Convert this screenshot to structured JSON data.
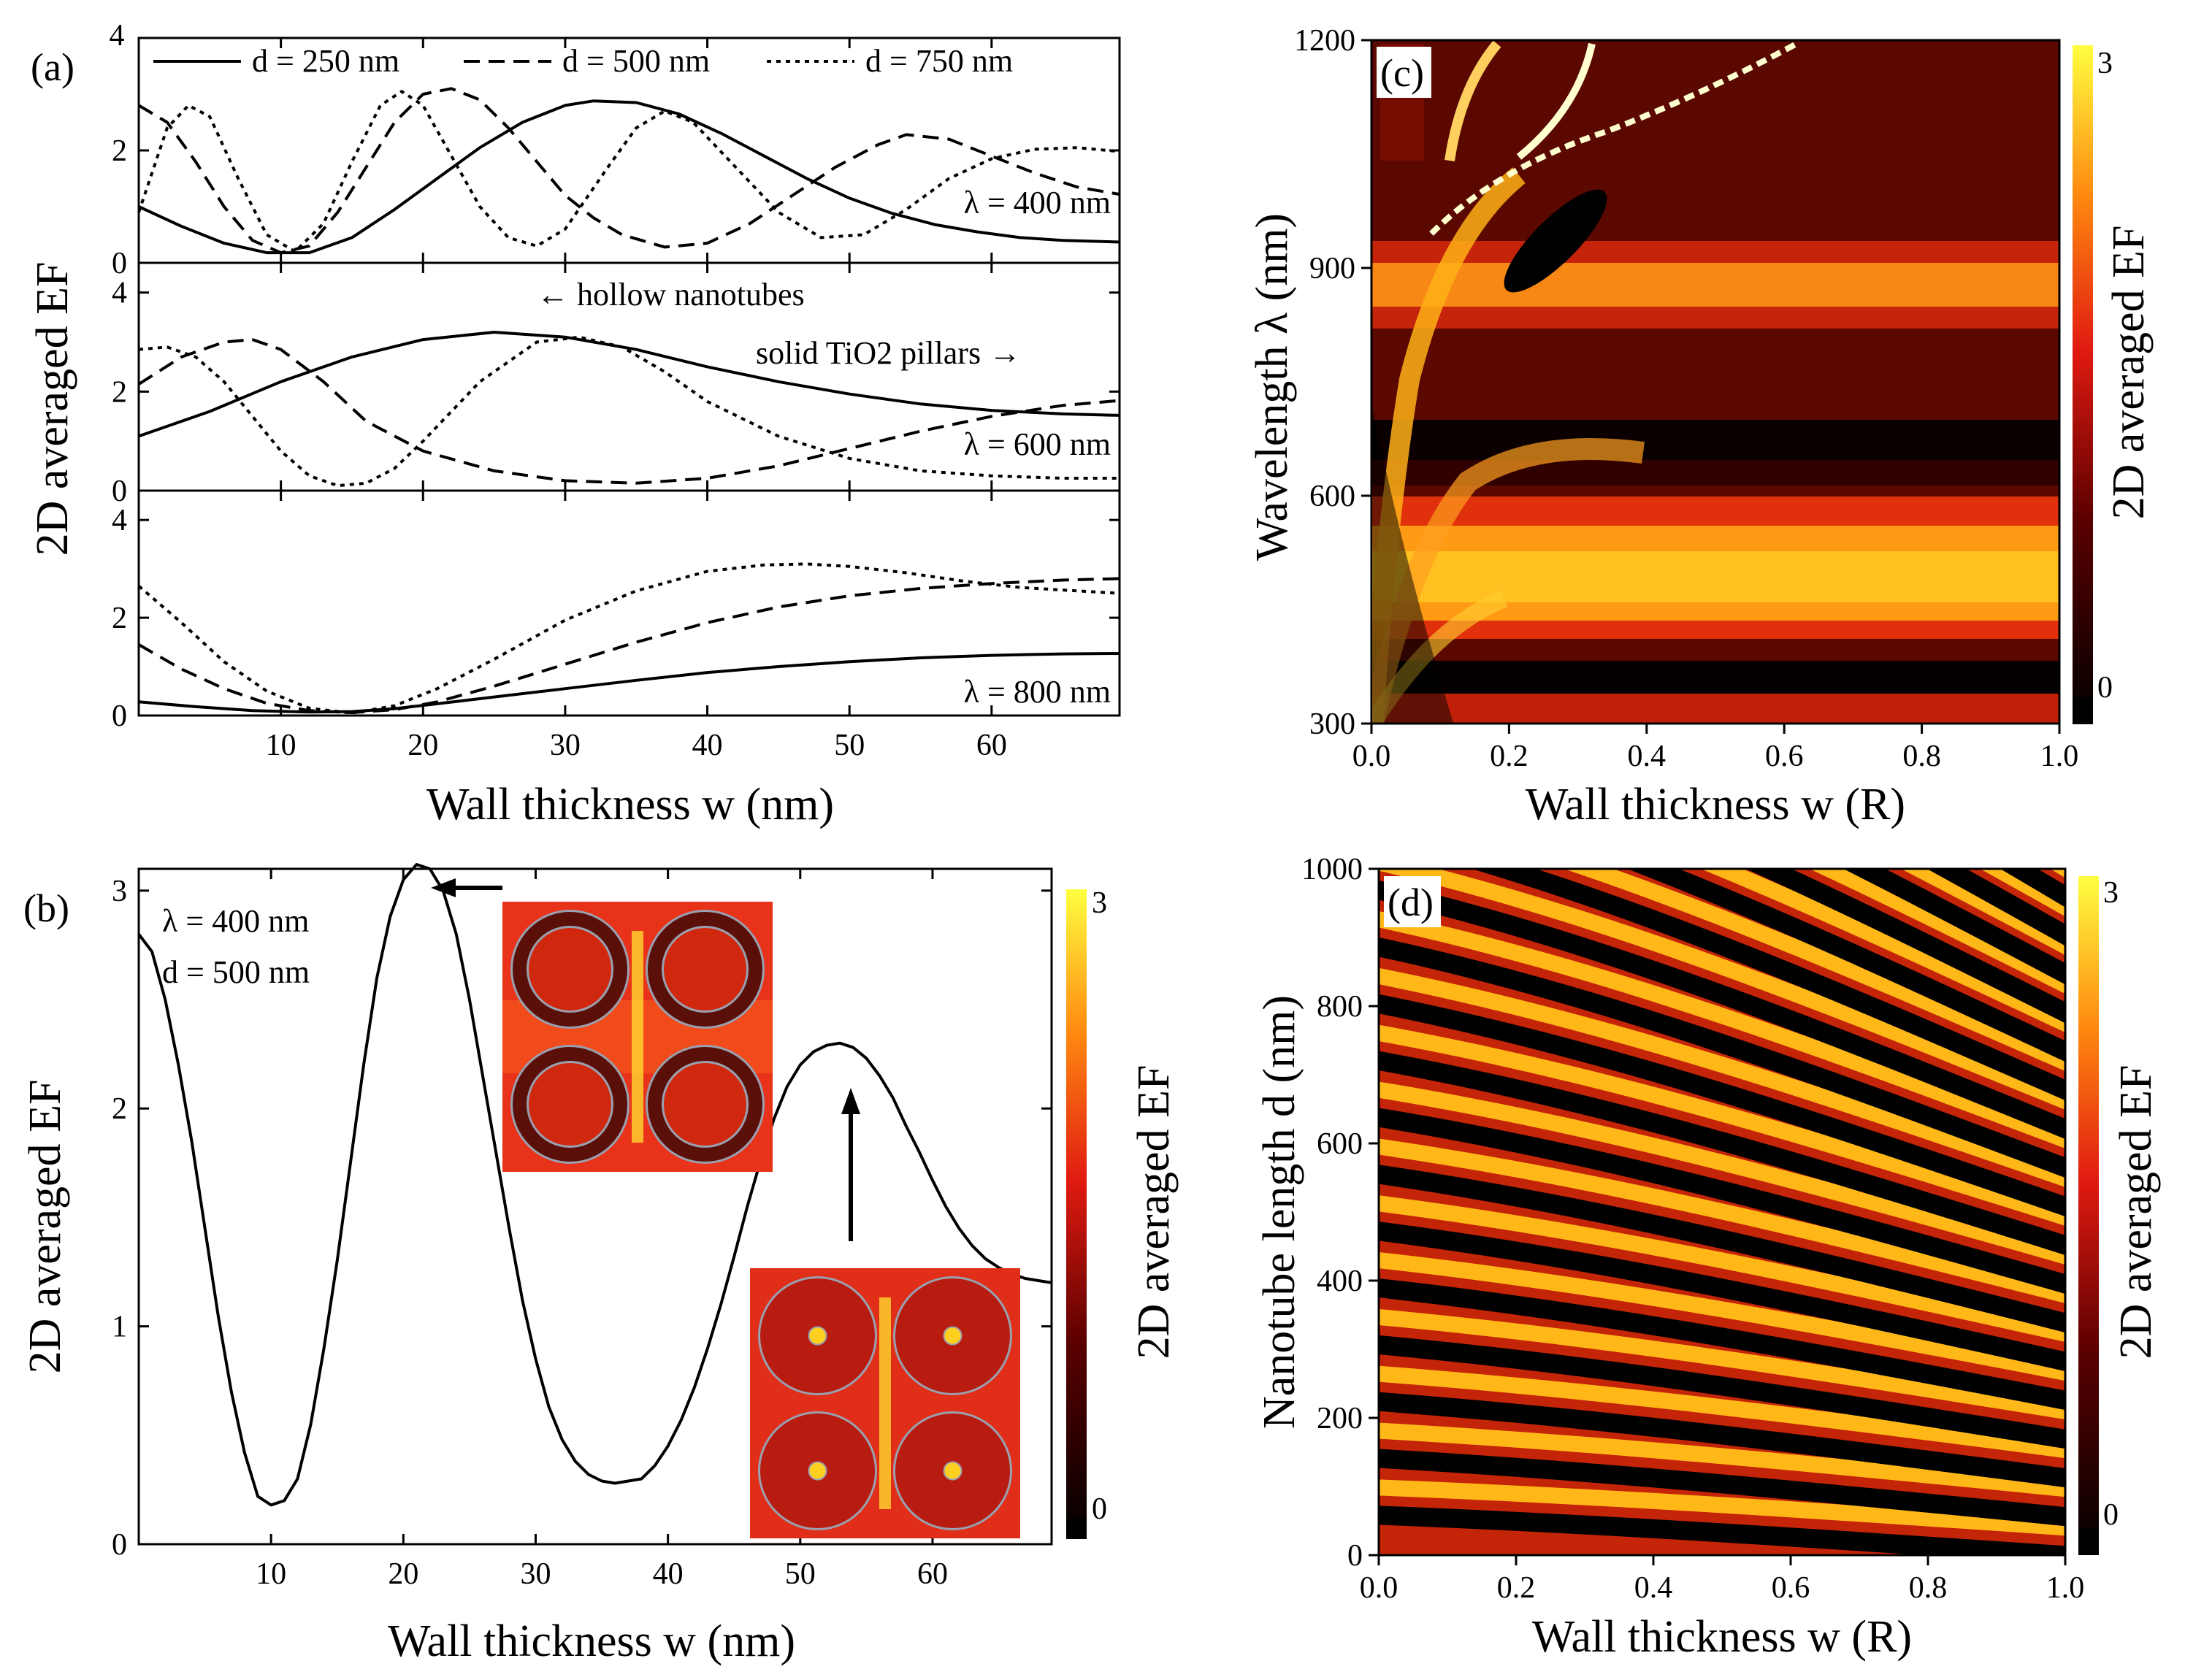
{
  "colors": {
    "axis": "#000000",
    "heatmap_low": "#000000",
    "heatmap_mid": "#e01010",
    "heatmap_high": "#ffff30",
    "inset_bg": "#e8321a"
  },
  "panel_a": {
    "label": "(a)",
    "xlabel": "Wall thickness w (nm)",
    "ylabel": "2D averaged EF",
    "legend": [
      "d = 250 nm",
      "d = 500 nm",
      "d = 750 nm"
    ],
    "top_axis_max": "4",
    "annotation_hollow": "← hollow nanotubes",
    "annotation_solid": "solid TiO2 pillars →"
  },
  "panel_b": {
    "label": "(b)",
    "xlabel": "Wall thickness w (nm)",
    "ylabel": "2D averaged EF",
    "text_lambda": "λ = 400 nm",
    "text_d": "d = 500 nm",
    "colorbar_label": "2D averaged EF",
    "colorbar_max": "3",
    "colorbar_min": "0"
  },
  "panel_c": {
    "label": "(c)",
    "xlabel": "Wall thickness w (R)",
    "ylabel": "Wavelength λ (nm)",
    "colorbar_label": "2D averaged EF",
    "colorbar_max": "3",
    "colorbar_min": "0"
  },
  "panel_d": {
    "label": "(d)",
    "xlabel": "Wall thickness w (R)",
    "ylabel": "Nanotube length d (nm)",
    "colorbar_label": "2D averaged EF",
    "colorbar_max": "3",
    "colorbar_min": "0"
  },
  "chart_data": [
    {
      "id": "a1",
      "type": "line",
      "title": "λ = 400 nm",
      "xlim": [
        0,
        69
      ],
      "ylim": [
        0,
        4
      ],
      "xticks": [
        10,
        20,
        30,
        40,
        50,
        60
      ],
      "yticks": [
        0,
        2
      ],
      "series": [
        {
          "name": "d = 250 nm",
          "style": "solid",
          "x": [
            0,
            3,
            6,
            9,
            12,
            15,
            18,
            21,
            24,
            27,
            30,
            32,
            35,
            38,
            41,
            44,
            47,
            50,
            53,
            56,
            59,
            62,
            65,
            69
          ],
          "y": [
            1.0,
            0.65,
            0.35,
            0.18,
            0.18,
            0.45,
            0.95,
            1.5,
            2.05,
            2.5,
            2.8,
            2.88,
            2.85,
            2.65,
            2.3,
            1.9,
            1.5,
            1.15,
            0.88,
            0.68,
            0.55,
            0.45,
            0.4,
            0.37
          ]
        },
        {
          "name": "d = 500 nm",
          "style": "dashed",
          "x": [
            0,
            2,
            4,
            6,
            8,
            10,
            12,
            14,
            16,
            18,
            20,
            22,
            24,
            26,
            28,
            30,
            32,
            34,
            37,
            40,
            43,
            46,
            49,
            52,
            54,
            57,
            60,
            63,
            66,
            69
          ],
          "y": [
            2.8,
            2.5,
            1.8,
            1.0,
            0.4,
            0.18,
            0.3,
            0.9,
            1.7,
            2.5,
            3.0,
            3.1,
            2.9,
            2.4,
            1.8,
            1.2,
            0.8,
            0.5,
            0.28,
            0.35,
            0.7,
            1.2,
            1.7,
            2.1,
            2.28,
            2.2,
            1.9,
            1.6,
            1.35,
            1.22
          ]
        },
        {
          "name": "d = 750 nm",
          "style": "dotted",
          "x": [
            0,
            2,
            3.5,
            5,
            7,
            9,
            11,
            13,
            15,
            17,
            18.5,
            20,
            22,
            24,
            26,
            28,
            30,
            33,
            35,
            37,
            39,
            42,
            45,
            48,
            51,
            54,
            57,
            60,
            63,
            66,
            69
          ],
          "y": [
            0.9,
            2.4,
            2.8,
            2.6,
            1.5,
            0.5,
            0.2,
            0.7,
            1.8,
            2.8,
            3.05,
            2.8,
            1.9,
            1.0,
            0.45,
            0.3,
            0.6,
            1.7,
            2.4,
            2.7,
            2.5,
            1.7,
            0.9,
            0.45,
            0.5,
            0.95,
            1.5,
            1.85,
            2.02,
            2.05,
            1.98
          ]
        }
      ]
    },
    {
      "id": "a2",
      "type": "line",
      "title": "λ = 600 nm",
      "xlim": [
        0,
        69
      ],
      "ylim": [
        0,
        4.6
      ],
      "xticks": [
        10,
        20,
        30,
        40,
        50,
        60
      ],
      "yticks": [
        0,
        2,
        4
      ],
      "series": [
        {
          "name": "d = 250 nm",
          "style": "solid",
          "x": [
            0,
            5,
            10,
            15,
            20,
            25,
            30,
            35,
            40,
            45,
            50,
            55,
            60,
            65,
            69
          ],
          "y": [
            1.1,
            1.6,
            2.2,
            2.7,
            3.05,
            3.2,
            3.1,
            2.85,
            2.5,
            2.2,
            1.95,
            1.75,
            1.62,
            1.55,
            1.52
          ]
        },
        {
          "name": "d = 500 nm",
          "style": "dashed",
          "x": [
            0,
            3,
            6,
            8,
            10,
            13,
            16,
            20,
            25,
            30,
            35,
            40,
            45,
            50,
            55,
            60,
            65,
            69
          ],
          "y": [
            2.15,
            2.7,
            3.0,
            3.05,
            2.85,
            2.2,
            1.4,
            0.8,
            0.4,
            0.2,
            0.15,
            0.25,
            0.5,
            0.85,
            1.2,
            1.5,
            1.72,
            1.82
          ]
        },
        {
          "name": "d = 750 nm",
          "style": "dotted",
          "x": [
            0,
            2,
            4,
            6,
            8,
            10,
            12,
            14,
            16,
            18,
            20,
            24,
            28,
            31,
            34,
            37,
            40,
            45,
            50,
            55,
            60,
            65,
            69
          ],
          "y": [
            2.85,
            2.9,
            2.7,
            2.2,
            1.5,
            0.8,
            0.3,
            0.1,
            0.15,
            0.45,
            1.0,
            2.2,
            3.0,
            3.1,
            2.9,
            2.4,
            1.8,
            1.1,
            0.65,
            0.4,
            0.3,
            0.25,
            0.25
          ]
        }
      ]
    },
    {
      "id": "a3",
      "type": "line",
      "title": "λ = 800 nm",
      "xlim": [
        0,
        69
      ],
      "ylim": [
        0,
        4.6
      ],
      "xticks": [
        10,
        20,
        30,
        40,
        50,
        60
      ],
      "yticks": [
        0,
        2,
        4
      ],
      "series": [
        {
          "name": "d = 250 nm",
          "style": "solid",
          "x": [
            0,
            4,
            8,
            12,
            15,
            18,
            21,
            25,
            30,
            35,
            40,
            45,
            50,
            55,
            60,
            65,
            69
          ],
          "y": [
            0.28,
            0.18,
            0.1,
            0.07,
            0.08,
            0.14,
            0.24,
            0.38,
            0.55,
            0.72,
            0.88,
            1.0,
            1.1,
            1.18,
            1.23,
            1.26,
            1.27
          ]
        },
        {
          "name": "d = 500 nm",
          "style": "dashed",
          "x": [
            0,
            3,
            6,
            9,
            12,
            15,
            18,
            21,
            25,
            30,
            35,
            40,
            45,
            50,
            55,
            60,
            65,
            69
          ],
          "y": [
            1.45,
            0.95,
            0.55,
            0.25,
            0.1,
            0.06,
            0.12,
            0.28,
            0.6,
            1.05,
            1.5,
            1.9,
            2.22,
            2.45,
            2.6,
            2.7,
            2.77,
            2.8
          ]
        },
        {
          "name": "d = 750 nm",
          "style": "dotted",
          "x": [
            0,
            3,
            6,
            9,
            12,
            15,
            18,
            21,
            25,
            30,
            35,
            40,
            44,
            47,
            50,
            54,
            58,
            62,
            66,
            69
          ],
          "y": [
            2.65,
            1.9,
            1.1,
            0.5,
            0.15,
            0.05,
            0.2,
            0.55,
            1.15,
            1.95,
            2.55,
            2.95,
            3.08,
            3.1,
            3.05,
            2.92,
            2.75,
            2.62,
            2.55,
            2.5
          ]
        }
      ]
    },
    {
      "id": "b",
      "type": "line",
      "xlim": [
        0,
        69
      ],
      "ylim": [
        0,
        3.1
      ],
      "xticks": [
        10,
        20,
        30,
        40,
        50,
        60
      ],
      "yticks": [
        0,
        1,
        2,
        3
      ],
      "series": [
        {
          "name": "d = 500 nm",
          "style": "solid",
          "x": [
            0,
            1,
            2,
            3,
            4,
            5,
            6,
            7,
            8,
            9,
            10,
            11,
            12,
            13,
            14,
            15,
            16,
            17,
            18,
            19,
            20,
            21,
            22,
            23,
            24,
            25,
            26,
            27,
            28,
            29,
            30,
            31,
            32,
            33,
            34,
            35,
            36,
            37,
            38,
            39,
            40,
            41,
            42,
            43,
            44,
            45,
            46,
            47,
            48,
            49,
            50,
            51,
            52,
            53,
            54,
            55,
            56,
            57,
            58,
            59,
            60,
            61,
            62,
            63,
            64,
            65,
            66,
            67,
            68,
            69
          ],
          "y": [
            2.8,
            2.72,
            2.5,
            2.2,
            1.85,
            1.45,
            1.05,
            0.7,
            0.42,
            0.22,
            0.18,
            0.2,
            0.3,
            0.55,
            0.9,
            1.3,
            1.75,
            2.2,
            2.6,
            2.88,
            3.05,
            3.12,
            3.1,
            3.0,
            2.8,
            2.5,
            2.15,
            1.8,
            1.45,
            1.12,
            0.85,
            0.63,
            0.48,
            0.38,
            0.32,
            0.29,
            0.28,
            0.29,
            0.3,
            0.36,
            0.45,
            0.57,
            0.72,
            0.9,
            1.1,
            1.32,
            1.55,
            1.76,
            1.95,
            2.1,
            2.2,
            2.26,
            2.29,
            2.3,
            2.28,
            2.23,
            2.15,
            2.05,
            1.92,
            1.8,
            1.67,
            1.55,
            1.45,
            1.37,
            1.31,
            1.27,
            1.24,
            1.22,
            1.21,
            1.2
          ]
        }
      ]
    },
    {
      "id": "c",
      "type": "heatmap",
      "xlabel": "Wall thickness w (R)",
      "ylabel": "Wavelength λ (nm)",
      "xlim": [
        0,
        1
      ],
      "ylim": [
        300,
        1200
      ],
      "xticks": [
        0.0,
        0.2,
        0.4,
        0.6,
        0.8,
        1.0
      ],
      "xtick_labels": [
        "0.0",
        "0.2",
        "0.4",
        "0.6",
        "0.8",
        "1.0"
      ],
      "yticks": [
        300,
        600,
        900,
        1200
      ],
      "colorbar_range": [
        0,
        3
      ]
    },
    {
      "id": "d",
      "type": "heatmap",
      "xlabel": "Wall thickness w (R)",
      "ylabel": "Nanotube length d (nm)",
      "xlim": [
        0,
        1
      ],
      "ylim": [
        0,
        1000
      ],
      "xticks": [
        0.0,
        0.2,
        0.4,
        0.6,
        0.8,
        1.0
      ],
      "xtick_labels": [
        "0.0",
        "0.2",
        "0.4",
        "0.6",
        "0.8",
        "1.0"
      ],
      "yticks": [
        0,
        200,
        400,
        600,
        800,
        1000
      ],
      "colorbar_range": [
        0,
        3
      ]
    }
  ]
}
